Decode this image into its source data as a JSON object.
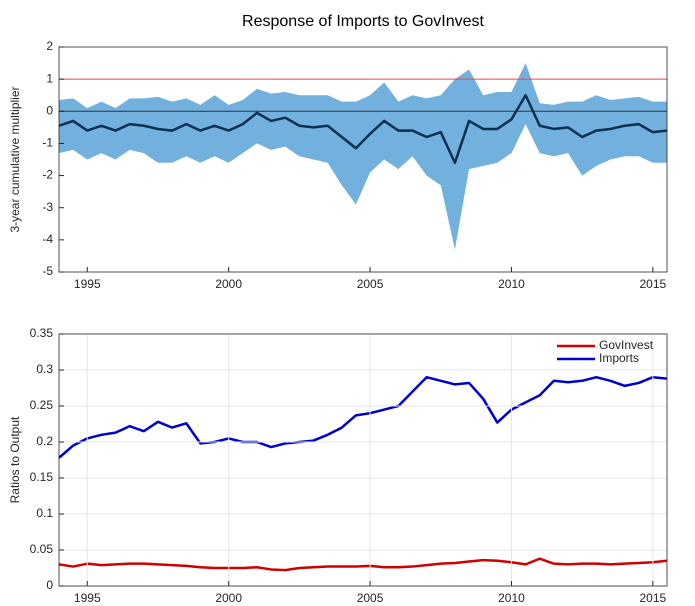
{
  "chart_data": [
    {
      "type": "band_line",
      "title": "Response of Imports to GovInvest",
      "ylabel": "3-year cumulative multiplier",
      "xlim": [
        1994,
        2015.5
      ],
      "xticks": [
        1995,
        2000,
        2005,
        2010,
        2015
      ],
      "ylim": [
        -5,
        2
      ],
      "yticks": [
        -5,
        -4,
        -3,
        -2,
        -1,
        0,
        1,
        2
      ],
      "grid": false,
      "color": "#0b2f4f",
      "band_color": "#72b0de",
      "ref_lines": [
        {
          "value": 1,
          "color": "#e8484a"
        },
        {
          "value": 0,
          "color": "#333333"
        }
      ],
      "x": [
        1994,
        1994.5,
        1995,
        1995.5,
        1996,
        1996.5,
        1997,
        1997.5,
        1998,
        1998.5,
        1999,
        1999.5,
        2000,
        2000.5,
        2001,
        2001.5,
        2002,
        2002.5,
        2003,
        2003.5,
        2004,
        2004.5,
        2005,
        2005.5,
        2006,
        2006.5,
        2007,
        2007.5,
        2008,
        2008.5,
        2009,
        2009.5,
        2010,
        2010.5,
        2011,
        2011.5,
        2012,
        2012.5,
        2013,
        2013.5,
        2014,
        2014.5,
        2015,
        2015.5
      ],
      "values": [
        -0.45,
        -0.3,
        -0.6,
        -0.45,
        -0.6,
        -0.4,
        -0.45,
        -0.55,
        -0.6,
        -0.4,
        -0.6,
        -0.45,
        -0.6,
        -0.4,
        -0.05,
        -0.3,
        -0.2,
        -0.45,
        -0.5,
        -0.45,
        -0.8,
        -1.15,
        -0.7,
        -0.3,
        -0.6,
        -0.6,
        -0.8,
        -0.65,
        -1.6,
        -0.3,
        -0.55,
        -0.55,
        -0.25,
        0.5,
        -0.45,
        -0.55,
        -0.5,
        -0.8,
        -0.6,
        -0.55,
        -0.45,
        -0.4,
        -0.65,
        -0.6
      ],
      "upper": [
        0.35,
        0.4,
        0.1,
        0.3,
        0.1,
        0.4,
        0.4,
        0.45,
        0.3,
        0.4,
        0.2,
        0.5,
        0.2,
        0.35,
        0.7,
        0.55,
        0.6,
        0.5,
        0.5,
        0.5,
        0.3,
        0.3,
        0.5,
        0.9,
        0.3,
        0.5,
        0.4,
        0.5,
        1.0,
        1.3,
        0.5,
        0.6,
        0.6,
        1.5,
        0.25,
        0.2,
        0.3,
        0.3,
        0.5,
        0.35,
        0.4,
        0.45,
        0.3,
        0.3
      ],
      "lower": [
        -1.3,
        -1.2,
        -1.5,
        -1.3,
        -1.5,
        -1.2,
        -1.3,
        -1.6,
        -1.6,
        -1.4,
        -1.6,
        -1.4,
        -1.6,
        -1.3,
        -1.0,
        -1.2,
        -1.1,
        -1.4,
        -1.5,
        -1.6,
        -2.3,
        -2.9,
        -1.9,
        -1.5,
        -1.8,
        -1.4,
        -2.0,
        -2.3,
        -4.3,
        -1.8,
        -1.7,
        -1.6,
        -1.3,
        -0.4,
        -1.3,
        -1.4,
        -1.3,
        -2.0,
        -1.7,
        -1.5,
        -1.4,
        -1.4,
        -1.6,
        -1.6
      ]
    },
    {
      "type": "line",
      "ylabel": "Ratios to Output",
      "xlim": [
        1994,
        2015.5
      ],
      "xticks": [
        1995,
        2000,
        2005,
        2010,
        2015
      ],
      "ylim": [
        0,
        0.35
      ],
      "yticks": [
        0,
        0.05,
        0.1,
        0.15,
        0.2,
        0.25,
        0.3,
        0.35
      ],
      "grid": true,
      "legend": "top-right",
      "x": [
        1994,
        1994.5,
        1995,
        1995.5,
        1996,
        1996.5,
        1997,
        1997.5,
        1998,
        1998.5,
        1999,
        1999.5,
        2000,
        2000.5,
        2001,
        2001.5,
        2002,
        2002.5,
        2003,
        2003.5,
        2004,
        2004.5,
        2005,
        2005.5,
        2006,
        2006.5,
        2007,
        2007.5,
        2008,
        2008.5,
        2009,
        2009.5,
        2010,
        2010.5,
        2011,
        2011.5,
        2012,
        2012.5,
        2013,
        2013.5,
        2014,
        2014.5,
        2015,
        2015.5
      ],
      "series": [
        {
          "name": "GovInvest",
          "color": "#d00000",
          "values": [
            0.03,
            0.027,
            0.031,
            0.029,
            0.03,
            0.031,
            0.031,
            0.03,
            0.029,
            0.028,
            0.026,
            0.025,
            0.025,
            0.025,
            0.026,
            0.023,
            0.022,
            0.025,
            0.026,
            0.027,
            0.027,
            0.027,
            0.028,
            0.026,
            0.026,
            0.027,
            0.029,
            0.031,
            0.032,
            0.034,
            0.036,
            0.035,
            0.033,
            0.03,
            0.038,
            0.031,
            0.03,
            0.031,
            0.031,
            0.03,
            0.031,
            0.032,
            0.033,
            0.035
          ]
        },
        {
          "name": "Imports",
          "color": "#0000cc",
          "values": [
            0.178,
            0.195,
            0.205,
            0.21,
            0.213,
            0.222,
            0.215,
            0.228,
            0.22,
            0.226,
            0.198,
            0.2,
            0.205,
            0.2,
            0.2,
            0.193,
            0.198,
            0.2,
            0.202,
            0.21,
            0.22,
            0.237,
            0.24,
            0.245,
            0.25,
            0.27,
            0.29,
            0.285,
            0.28,
            0.282,
            0.26,
            0.227,
            0.245,
            0.255,
            0.265,
            0.285,
            0.283,
            0.285,
            0.29,
            0.285,
            0.278,
            0.282,
            0.29,
            0.288
          ]
        }
      ]
    }
  ]
}
